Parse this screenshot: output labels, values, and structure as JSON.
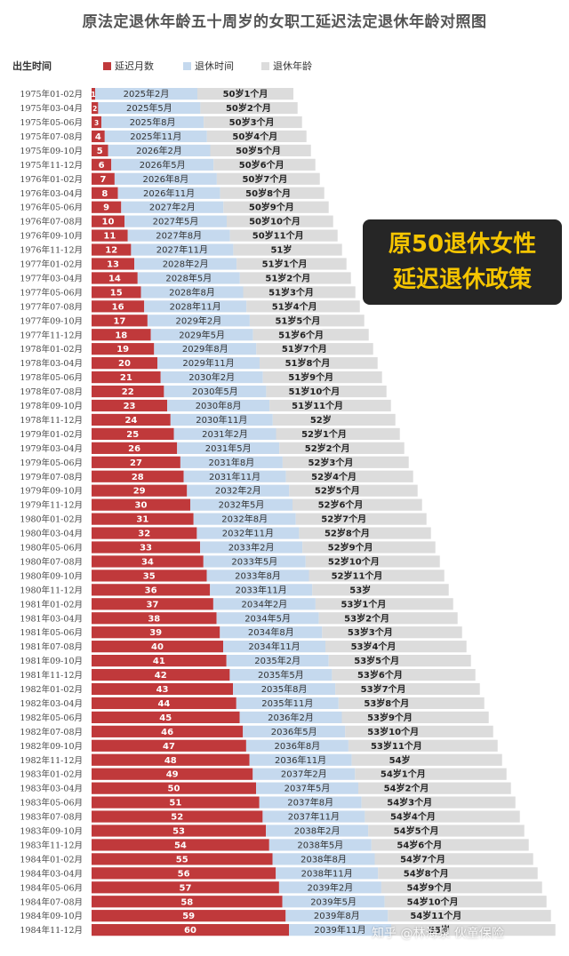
{
  "title": "原法定退休年龄五十周岁的女职工延迟法定退休年龄对照图",
  "legend": {
    "y_title": "出生时间",
    "items": [
      {
        "label": "延迟月数",
        "color": "#c0393b"
      },
      {
        "label": "退休时间",
        "color": "#c5d9ee"
      },
      {
        "label": "退休年龄",
        "color": "#dcdcdc"
      }
    ]
  },
  "callout": {
    "line1": "原50退休女性",
    "line2": "延迟退休政策"
  },
  "watermark": "知乎 @林海泉 伙童保险",
  "chart_data": {
    "type": "bar",
    "orientation": "horizontal",
    "stacked": true,
    "categories": [
      "1975年01-02月",
      "1975年03-04月",
      "1975年05-06月",
      "1975年07-08月",
      "1975年09-10月",
      "1975年11-12月",
      "1976年01-02月",
      "1976年03-04月",
      "1976年05-06月",
      "1976年07-08月",
      "1976年09-10月",
      "1976年11-12月",
      "1977年01-02月",
      "1977年03-04月",
      "1977年05-06月",
      "1977年07-08月",
      "1977年09-10月",
      "1977年11-12月",
      "1978年01-02月",
      "1978年03-04月",
      "1978年05-06月",
      "1978年07-08月",
      "1978年09-10月",
      "1978年11-12月",
      "1979年01-02月",
      "1979年03-04月",
      "1979年05-06月",
      "1979年07-08月",
      "1979年09-10月",
      "1979年11-12月",
      "1980年01-02月",
      "1980年03-04月",
      "1980年05-06月",
      "1980年07-08月",
      "1980年09-10月",
      "1980年11-12月",
      "1981年01-02月",
      "1981年03-04月",
      "1981年05-06月",
      "1981年07-08月",
      "1981年09-10月",
      "1981年11-12月",
      "1982年01-02月",
      "1982年03-04月",
      "1982年05-06月",
      "1982年07-08月",
      "1982年09-10月",
      "1982年11-12月",
      "1983年01-02月",
      "1983年03-04月",
      "1983年05-06月",
      "1983年07-08月",
      "1983年09-10月",
      "1983年11-12月",
      "1984年01-02月",
      "1984年03-04月",
      "1984年05-06月",
      "1984年07-08月",
      "1984年09-10月",
      "1984年11-12月"
    ],
    "series": [
      {
        "name": "延迟月数",
        "values": [
          1,
          2,
          3,
          4,
          5,
          6,
          7,
          8,
          9,
          10,
          11,
          12,
          13,
          14,
          15,
          16,
          17,
          18,
          19,
          20,
          21,
          22,
          23,
          24,
          25,
          26,
          27,
          28,
          29,
          30,
          31,
          32,
          33,
          34,
          35,
          36,
          37,
          38,
          39,
          40,
          41,
          42,
          43,
          44,
          45,
          46,
          47,
          48,
          49,
          50,
          51,
          52,
          53,
          54,
          55,
          56,
          57,
          58,
          59,
          60
        ]
      },
      {
        "name": "退休时间",
        "labels": [
          "2025年2月",
          "2025年5月",
          "2025年8月",
          "2025年11月",
          "2026年2月",
          "2026年5月",
          "2026年8月",
          "2026年11月",
          "2027年2月",
          "2027年5月",
          "2027年8月",
          "2027年11月",
          "2028年2月",
          "2028年5月",
          "2028年8月",
          "2028年11月",
          "2029年2月",
          "2029年5月",
          "2029年8月",
          "2029年11月",
          "2030年2月",
          "2030年5月",
          "2030年8月",
          "2030年11月",
          "2031年2月",
          "2031年5月",
          "2031年8月",
          "2031年11月",
          "2032年2月",
          "2032年5月",
          "2032年8月",
          "2032年11月",
          "2033年2月",
          "2033年5月",
          "2033年8月",
          "2033年11月",
          "2034年2月",
          "2034年5月",
          "2034年8月",
          "2034年11月",
          "2035年2月",
          "2035年5月",
          "2035年8月",
          "2035年11月",
          "2036年2月",
          "2036年5月",
          "2036年8月",
          "2036年11月",
          "2037年2月",
          "2037年5月",
          "2037年8月",
          "2037年11月",
          "2038年2月",
          "2038年5月",
          "2038年8月",
          "2038年11月",
          "2039年2月",
          "2039年5月",
          "2039年8月",
          "2039年11月"
        ]
      },
      {
        "name": "退休年龄",
        "labels": [
          "50岁1个月",
          "50岁2个月",
          "50岁3个月",
          "50岁4个月",
          "50岁5个月",
          "50岁6个月",
          "50岁7个月",
          "50岁8个月",
          "50岁9个月",
          "50岁10个月",
          "50岁11个月",
          "51岁",
          "51岁1个月",
          "51岁2个月",
          "51岁3个月",
          "51岁4个月",
          "51岁5个月",
          "51岁6个月",
          "51岁7个月",
          "51岁8个月",
          "51岁9个月",
          "51岁10个月",
          "51岁11个月",
          "52岁",
          "52岁1个月",
          "52岁2个月",
          "52岁3个月",
          "52岁4个月",
          "52岁5个月",
          "52岁6个月",
          "52岁7个月",
          "52岁8个月",
          "52岁9个月",
          "52岁10个月",
          "52岁11个月",
          "53岁",
          "53岁1个月",
          "53岁2个月",
          "53岁3个月",
          "53岁4个月",
          "53岁5个月",
          "53岁6个月",
          "53岁7个月",
          "53岁8个月",
          "53岁9个月",
          "53岁10个月",
          "53岁11个月",
          "54岁",
          "54岁1个月",
          "54岁2个月",
          "54岁3个月",
          "54岁4个月",
          "54岁5个月",
          "54岁6个月",
          "54岁7个月",
          "54岁8个月",
          "54岁9个月",
          "54岁10个月",
          "54岁11个月",
          "55岁"
        ]
      }
    ],
    "colors": {
      "delay": "#c0393b",
      "retire_time": "#c5d9ee",
      "retire_age": "#dcdcdc"
    },
    "xlabel": "",
    "ylabel": "出生时间"
  }
}
